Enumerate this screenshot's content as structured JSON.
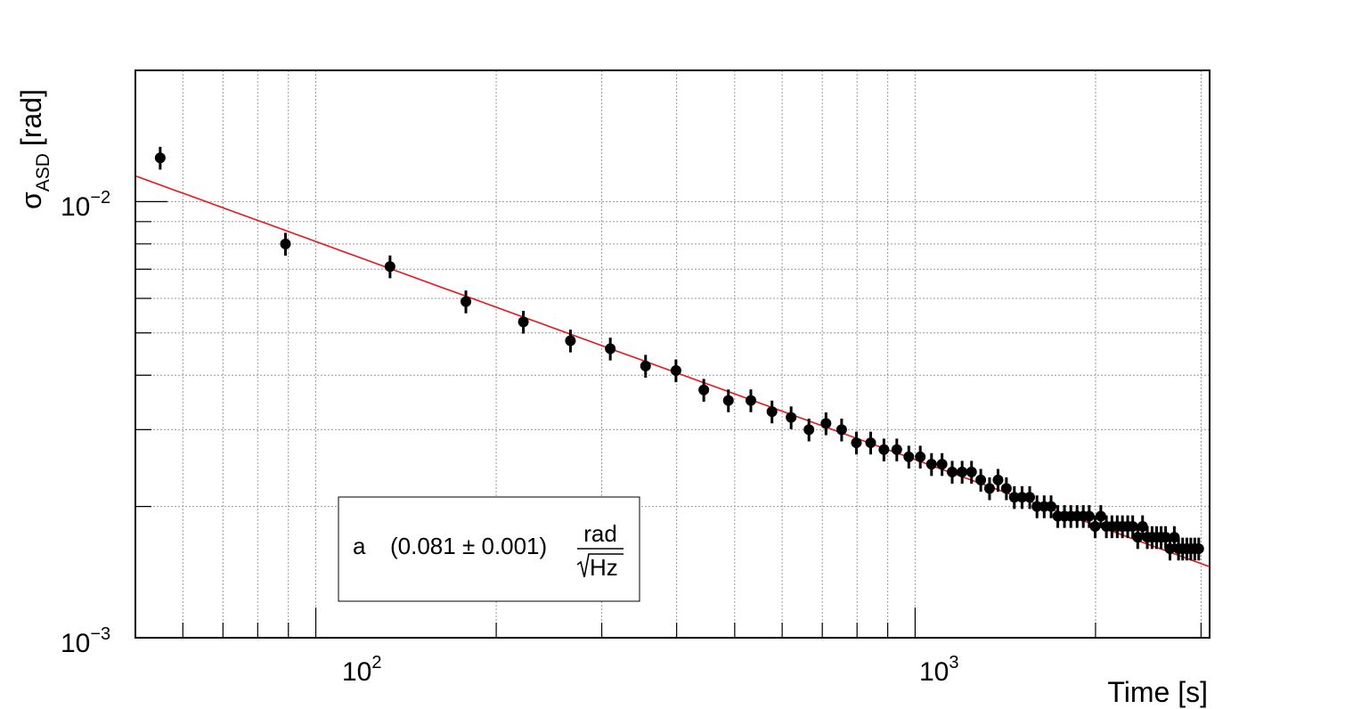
{
  "chart_data": {
    "type": "scatter",
    "title": "",
    "xlabel": "Time [s]",
    "ylabel": {
      "symbol": "σ",
      "subscript": "ASD",
      "unit": "[rad]"
    },
    "x_scale": "log",
    "y_scale": "log",
    "xlim": [
      50,
      3100
    ],
    "ylim": [
      0.001,
      0.02
    ],
    "grid": true,
    "x_tick_labels": [
      {
        "value": 100,
        "base": "10",
        "exp": "2"
      },
      {
        "value": 1000,
        "base": "10",
        "exp": "3"
      }
    ],
    "y_tick_labels": [
      {
        "value": 0.01,
        "base": "10",
        "exp": "−2"
      },
      {
        "value": 0.001,
        "base": "10",
        "exp": "−3"
      }
    ],
    "series": [
      {
        "marker_color": "#000000",
        "error_fraction": 0.06,
        "points": [
          [
            55,
            0.0126
          ],
          [
            89,
            0.008
          ],
          [
            133,
            0.0071
          ],
          [
            178,
            0.0059
          ],
          [
            222,
            0.0053
          ],
          [
            266,
            0.0048
          ],
          [
            310,
            0.0046
          ],
          [
            355,
            0.0042
          ],
          [
            399,
            0.0041
          ],
          [
            444,
            0.0037
          ],
          [
            488,
            0.0035
          ],
          [
            532,
            0.0035
          ],
          [
            577,
            0.0033
          ],
          [
            621,
            0.0032
          ],
          [
            665,
            0.003
          ],
          [
            710,
            0.0031
          ],
          [
            754,
            0.003
          ],
          [
            798,
            0.0028
          ],
          [
            843,
            0.0028
          ],
          [
            887,
            0.0027
          ],
          [
            932,
            0.0027
          ],
          [
            976,
            0.0026
          ],
          [
            1020,
            0.0026
          ],
          [
            1065,
            0.0025
          ],
          [
            1109,
            0.0025
          ],
          [
            1153,
            0.0024
          ],
          [
            1198,
            0.0024
          ],
          [
            1242,
            0.0024
          ],
          [
            1287,
            0.0023
          ],
          [
            1331,
            0.0022
          ],
          [
            1375,
            0.0023
          ],
          [
            1420,
            0.0022
          ],
          [
            1464,
            0.0021
          ],
          [
            1508,
            0.0021
          ],
          [
            1553,
            0.0021
          ],
          [
            1597,
            0.002
          ],
          [
            1642,
            0.002
          ],
          [
            1686,
            0.002
          ],
          [
            1730,
            0.0019
          ],
          [
            1775,
            0.0019
          ],
          [
            1819,
            0.0019
          ],
          [
            1863,
            0.0019
          ],
          [
            1908,
            0.0019
          ],
          [
            1952,
            0.0019
          ],
          [
            1997,
            0.0018
          ],
          [
            2041,
            0.0019
          ],
          [
            2085,
            0.0018
          ],
          [
            2130,
            0.0018
          ],
          [
            2174,
            0.0018
          ],
          [
            2218,
            0.0018
          ],
          [
            2263,
            0.0018
          ],
          [
            2307,
            0.0018
          ],
          [
            2352,
            0.0017
          ],
          [
            2396,
            0.0018
          ],
          [
            2440,
            0.0017
          ],
          [
            2485,
            0.0017
          ],
          [
            2529,
            0.0017
          ],
          [
            2573,
            0.0017
          ],
          [
            2618,
            0.0017
          ],
          [
            2662,
            0.0016
          ],
          [
            2707,
            0.0017
          ],
          [
            2751,
            0.0016
          ],
          [
            2795,
            0.0016
          ],
          [
            2840,
            0.0016
          ],
          [
            2884,
            0.0016
          ],
          [
            2928,
            0.0016
          ],
          [
            2973,
            0.0016
          ]
        ]
      }
    ],
    "fit": {
      "color": "#e8141c",
      "parameter": "a",
      "value_text": "(0.081 ± 0.001)",
      "unit_numerator": "rad",
      "unit_denominator": "Hz",
      "a": 0.081,
      "exponent": -0.5,
      "x_range": [
        50,
        3100
      ]
    },
    "legend_position": "bottom-center-left"
  }
}
